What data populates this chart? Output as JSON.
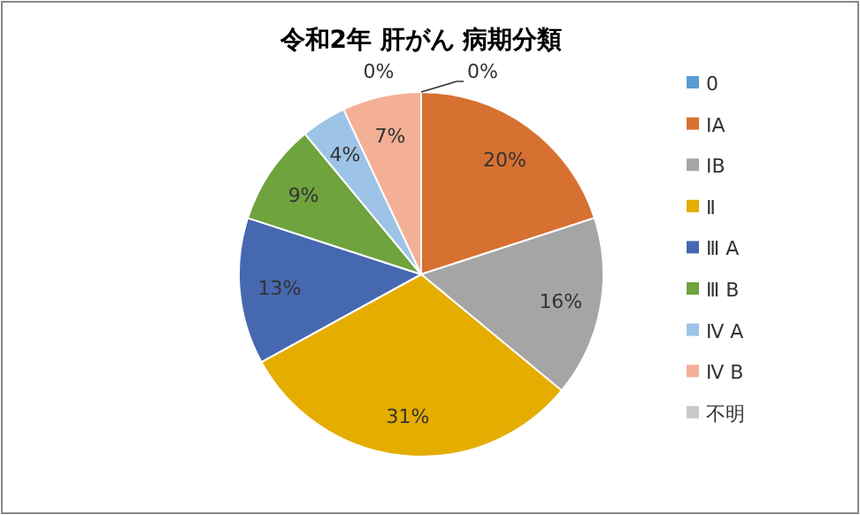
{
  "chart_data": {
    "type": "pie",
    "title": "令和2年  肝がん  病期分類",
    "categories": [
      "0",
      "ⅠA",
      "ⅠB",
      "Ⅱ",
      "Ⅲ A",
      "Ⅲ B",
      "Ⅳ A",
      "Ⅳ B",
      "不明"
    ],
    "values": [
      0,
      20,
      16,
      31,
      13,
      9,
      4,
      7,
      0
    ],
    "value_labels": [
      "0%",
      "20%",
      "16%",
      "31%",
      "13%",
      "9%",
      "4%",
      "7%",
      "0%"
    ],
    "colors": [
      "#5b9bd5",
      "#d77131",
      "#a5a5a5",
      "#e4ad00",
      "#4668b0",
      "#6fa33e",
      "#9dc3e6",
      "#f4b096",
      "#c9c9c9"
    ],
    "legend": "right"
  }
}
